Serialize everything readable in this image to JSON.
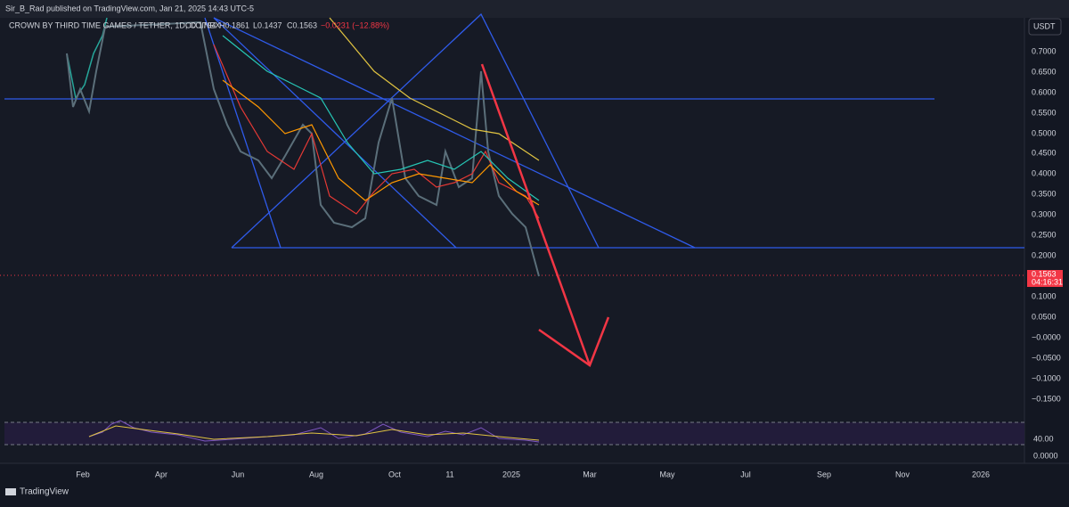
{
  "header": {
    "publisher": "Sir_B_Rad published on TradingView.com, Jan 21, 2025 14:43 UTC-5"
  },
  "legend": {
    "symbol": "CROWN BY THIRD TIME GAMES / TETHER, 1D, COINEX",
    "open": "O0.1794",
    "high": "H0.1861",
    "low": "L0.1437",
    "close": "C0.1563",
    "change": "−0.0231 (−12.88%)"
  },
  "price_axis": {
    "currency": "USDT",
    "labels": [
      "0.7000",
      "0.6500",
      "0.6000",
      "0.5500",
      "0.5000",
      "0.4500",
      "0.4000",
      "0.3500",
      "0.3000",
      "0.2500",
      "0.2000",
      "0.1000",
      "0.0500",
      "−0.0000",
      "−0.0500",
      "−0.1000",
      "−0.1500"
    ],
    "last_price": "0.1563",
    "countdown": "04:16:31"
  },
  "rsi_axis": {
    "labels": [
      "40.00",
      "0.0000"
    ]
  },
  "time_axis": {
    "labels": [
      "Feb",
      "Apr",
      "Jun",
      "Aug",
      "Oct",
      "11",
      "2025",
      "Mar",
      "May",
      "Jul",
      "Sep",
      "Nov",
      "2026"
    ]
  },
  "footer": {
    "brand": "TradingView"
  }
}
